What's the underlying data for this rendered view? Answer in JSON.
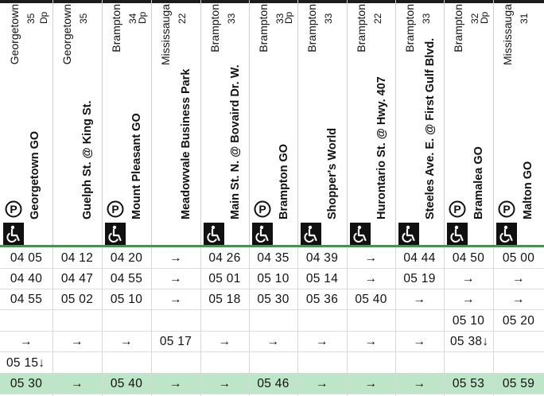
{
  "columns": [
    {
      "city": "Georgetown",
      "zone": "35",
      "dp": "Dp",
      "station": "Georgetown GO",
      "parking": true,
      "accessible": true
    },
    {
      "city": "Georgetown",
      "zone": "35",
      "dp": "",
      "station": "Guelph St. @ King St.",
      "parking": false,
      "accessible": false
    },
    {
      "city": "Brampton",
      "zone": "34",
      "dp": "Dp",
      "station": "Mount Pleasant GO",
      "parking": true,
      "accessible": true
    },
    {
      "city": "Mississauga",
      "zone": "22",
      "dp": "",
      "station": "Meadowvale Business Park",
      "parking": false,
      "accessible": false
    },
    {
      "city": "Brampton",
      "zone": "33",
      "dp": "",
      "station": "Main St. N. @ Bovaird Dr. W.",
      "parking": false,
      "accessible": true
    },
    {
      "city": "Brampton",
      "zone": "33",
      "dp": "Dp",
      "station": "Brampton GO",
      "parking": true,
      "accessible": true
    },
    {
      "city": "Brampton",
      "zone": "33",
      "dp": "",
      "station": "Shopper's World",
      "parking": false,
      "accessible": true
    },
    {
      "city": "Brampton",
      "zone": "22",
      "dp": "",
      "station": "Hurontario St. @ Hwy. 407",
      "parking": false,
      "accessible": true
    },
    {
      "city": "Brampton",
      "zone": "33",
      "dp": "",
      "station": "Steeles Ave. E. @ First Gulf Blvd.",
      "parking": false,
      "accessible": true
    },
    {
      "city": "Brampton",
      "zone": "32",
      "dp": "Dp",
      "station": "Bramalea GO",
      "parking": true,
      "accessible": true
    },
    {
      "city": "Mississauga",
      "zone": "31",
      "dp": "",
      "station": "Malton GO",
      "parking": true,
      "accessible": true
    }
  ],
  "rows": [
    {
      "highlight": false,
      "cells": [
        "04 05",
        "04 12",
        "04 20",
        "→",
        "04 26",
        "04 35",
        "04 39",
        "→",
        "04 44",
        "04 50",
        "05 00"
      ]
    },
    {
      "highlight": false,
      "cells": [
        "04 40",
        "04 47",
        "04 55",
        "→",
        "05 01",
        "05 10",
        "05 14",
        "→",
        "05 19",
        "→",
        "→"
      ]
    },
    {
      "highlight": false,
      "cells": [
        "04 55",
        "05 02",
        "05 10",
        "→",
        "05 18",
        "05 30",
        "05 36",
        "05 40",
        "→",
        "→",
        "→"
      ]
    },
    {
      "highlight": false,
      "cells": [
        "",
        "",
        "",
        "",
        "",
        "",
        "",
        "",
        "",
        "05 10",
        "05 20"
      ]
    },
    {
      "highlight": false,
      "cells": [
        "→",
        "→",
        "→",
        "05 17",
        "→",
        "→",
        "→",
        "→",
        "→",
        "05 38↓",
        ""
      ]
    },
    {
      "highlight": false,
      "cells": [
        "05 15↓",
        "",
        "",
        "",
        "",
        "",
        "",
        "",
        "",
        "",
        ""
      ]
    },
    {
      "highlight": true,
      "cells": [
        "05 30",
        "→",
        "05 40",
        "→",
        "→",
        "05 46",
        "→",
        "→",
        "→",
        "05 53",
        "05 59"
      ]
    }
  ],
  "icons": {
    "parking": "parking-icon",
    "accessible": "wheelchair-icon"
  },
  "colors": {
    "accent_green": "#3a9a4a",
    "highlight_row": "#bde5c7",
    "icon_bg": "#111111"
  }
}
